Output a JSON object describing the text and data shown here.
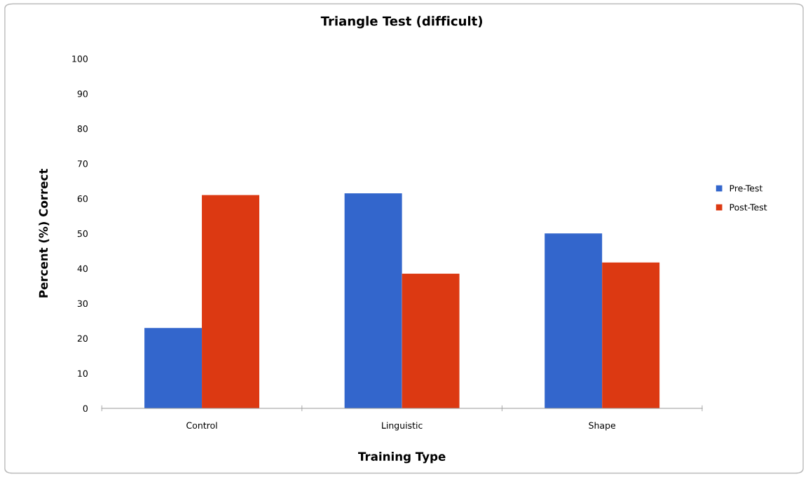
{
  "chart_data": {
    "type": "bar",
    "title": "Triangle Test (difficult)",
    "xlabel": "Training Type",
    "ylabel": "Percent (%) Correct",
    "categories": [
      "Control",
      "Linguistic",
      "Shape"
    ],
    "series": [
      {
        "name": "Pre-Test",
        "color": "#3366cc",
        "values": [
          23,
          61.5,
          50
        ]
      },
      {
        "name": "Post-Test",
        "color": "#dc3912",
        "values": [
          61,
          38.5,
          41.7
        ]
      }
    ],
    "ylim": [
      0,
      100
    ],
    "yticks": [
      0,
      10,
      20,
      30,
      40,
      50,
      60,
      70,
      80,
      90,
      100
    ],
    "grid": false,
    "legend": "right"
  }
}
